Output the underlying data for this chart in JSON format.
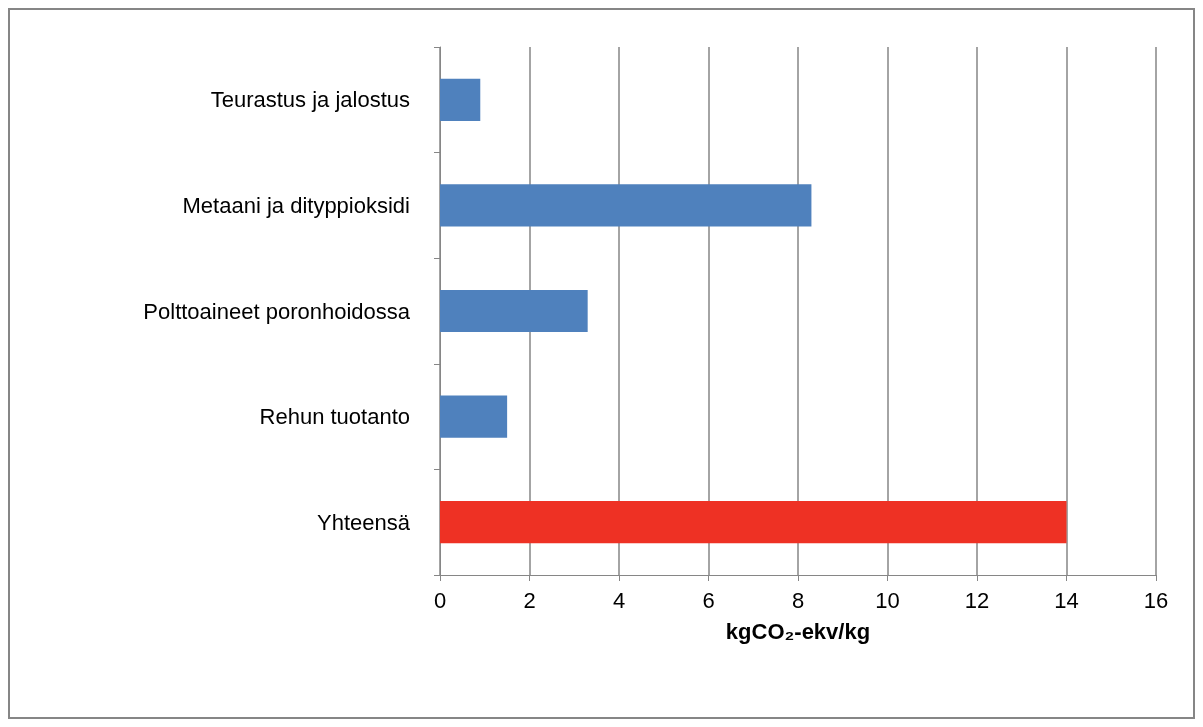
{
  "chart_data": {
    "type": "bar",
    "orientation": "horizontal",
    "xlabel": "kgCO₂-ekv/kg",
    "categories": [
      "Teurastus ja jalostus",
      "Metaani ja dityppioksidi",
      "Polttoaineet poronhoidossa",
      "Rehun tuotanto",
      "Yhteensä"
    ],
    "values": [
      0.9,
      8.3,
      3.3,
      1.5,
      14.0
    ],
    "colors": [
      "#4f81bd",
      "#4f81bd",
      "#4f81bd",
      "#4f81bd",
      "#ee3124"
    ],
    "xlim": [
      0,
      16
    ],
    "xticks": [
      0,
      2,
      4,
      6,
      8,
      10,
      12,
      14,
      16
    ],
    "grid": "x"
  }
}
